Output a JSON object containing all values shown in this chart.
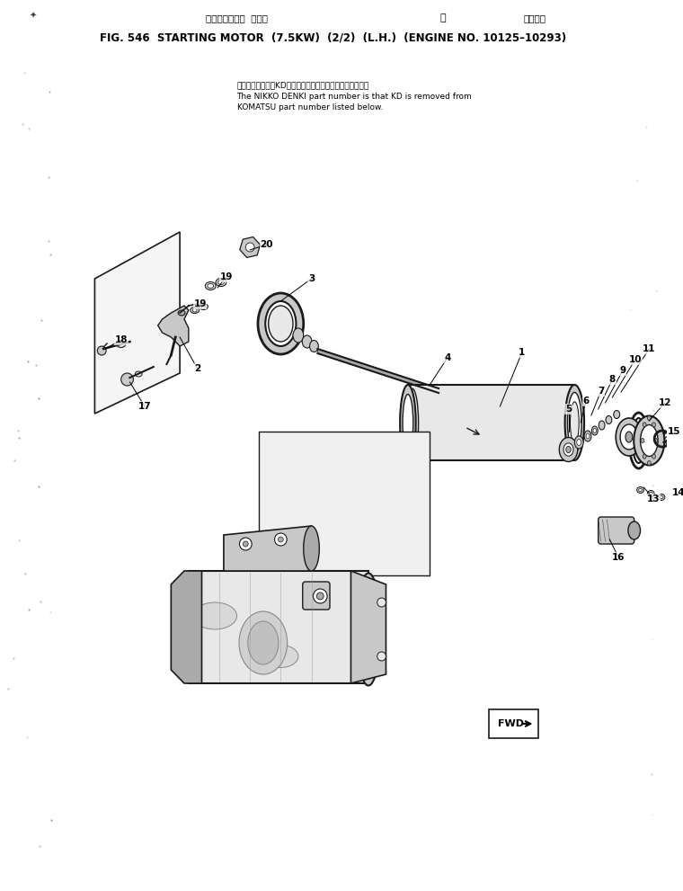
{
  "title_jp": "スターティング モータ",
  "title_jp2": "左",
  "title_jp3": "適用号機",
  "title_en": "FIG. 546  STARTING MOTOR  (7.5KW)  (2/2)  (L.H.)  (ENGINE NO. 10125–10293)",
  "note_jp": "品番のメーカ記号KDを除いたものが日興電機の品番です。",
  "note_en1": "The NIKKO DENKI part number is that KD is removed from",
  "note_en2": "KOMATSU part number listed below.",
  "bg_color": "#ffffff",
  "text_color": "#000000",
  "fig_width": 7.6,
  "fig_height": 9.91,
  "dpi": 100
}
